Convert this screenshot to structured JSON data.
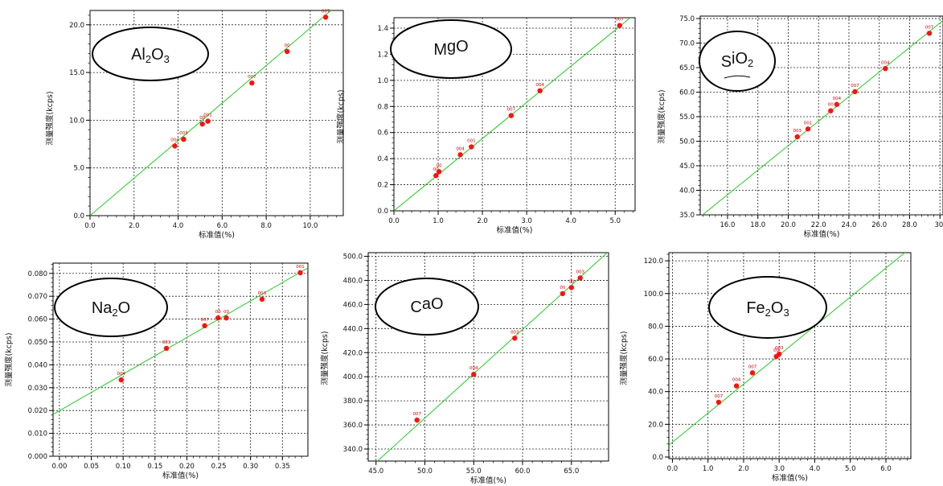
{
  "figure": {
    "charts": [
      {
        "oxide": "Al2O3"
      },
      {
        "oxide": "MgO"
      },
      {
        "oxide": "SiO2"
      },
      {
        "oxide": "Na2O"
      },
      {
        "oxide": "CaO"
      },
      {
        "oxide": "Fe2O3"
      }
    ]
  },
  "chart_data": [
    {
      "type": "scatter",
      "oxide": "Al2O3",
      "xlabel": "标准值(%)",
      "ylabel": "测量强度(kcps)",
      "xlim": [
        0,
        11.5
      ],
      "ylim": [
        0,
        21.5
      ],
      "xticks": [
        0,
        2,
        4,
        6,
        8,
        10
      ],
      "xtick_labels": [
        "0.0",
        "2.0",
        "4.0",
        "6.0",
        "8.0",
        "10.0"
      ],
      "yticks": [
        0,
        5,
        10,
        15,
        20
      ],
      "ytick_labels": [
        "0.0",
        "5.0",
        "10.0",
        "15.0",
        "20.0"
      ],
      "fit_line": [
        [
          0,
          0
        ],
        [
          11.5,
          22.6
        ]
      ],
      "points": [
        {
          "x": 3.85,
          "y": 7.3,
          "label": "004"
        },
        {
          "x": 4.25,
          "y": 8.0,
          "label": "003"
        },
        {
          "x": 5.1,
          "y": 9.6,
          "label": "00"
        },
        {
          "x": 5.35,
          "y": 9.9,
          "label": "001"
        },
        {
          "x": 7.35,
          "y": 13.9,
          "label": "007"
        },
        {
          "x": 8.95,
          "y": 17.2,
          "label": "00"
        },
        {
          "x": 10.7,
          "y": 20.8,
          "label": "007"
        }
      ],
      "grid": true
    },
    {
      "type": "scatter",
      "oxide": "MgO",
      "xlabel": "标准值(%)",
      "ylabel": "测量强度(kcps)",
      "xlim": [
        0,
        5.45
      ],
      "ylim": [
        0,
        1.48
      ],
      "xticks": [
        0,
        1,
        2,
        3,
        4,
        5
      ],
      "xtick_labels": [
        "0.0",
        "1.0",
        "2.0",
        "3.0",
        "4.0",
        "5.0"
      ],
      "yticks": [
        0,
        0.2,
        0.4,
        0.6,
        0.8,
        1.0,
        1.2,
        1.4
      ],
      "ytick_labels": [
        "0.0",
        "0.2",
        "0.4",
        "0.6",
        "0.8",
        "1.0",
        "1.2",
        "1.4"
      ],
      "fit_line": [
        [
          0,
          0.0
        ],
        [
          5.45,
          1.51
        ]
      ],
      "points": [
        {
          "x": 0.95,
          "y": 0.27,
          "label": "00"
        },
        {
          "x": 1.02,
          "y": 0.3,
          "label": "00"
        },
        {
          "x": 1.5,
          "y": 0.43,
          "label": "004"
        },
        {
          "x": 1.75,
          "y": 0.49,
          "label": "001"
        },
        {
          "x": 2.65,
          "y": 0.73,
          "label": "007"
        },
        {
          "x": 3.3,
          "y": 0.92,
          "label": "004"
        },
        {
          "x": 5.1,
          "y": 1.42,
          "label": "007"
        }
      ],
      "grid": true
    },
    {
      "type": "scatter",
      "oxide": "SiO2",
      "xlabel": "标准值(%)",
      "ylabel": "测量强度(kcps)",
      "xlim": [
        14.2,
        30.2
      ],
      "ylim": [
        35,
        75.5
      ],
      "xticks": [
        16,
        18,
        20,
        22,
        24,
        26,
        28,
        30
      ],
      "xtick_labels": [
        "16.0",
        "18.0",
        "20.0",
        "22.0",
        "24.0",
        "26.0",
        "28.0",
        "30."
      ],
      "yticks": [
        35,
        40,
        45,
        50,
        55,
        60,
        65,
        70,
        75
      ],
      "ytick_labels": [
        "35.0",
        "40.0",
        "45.0",
        "50.0",
        "55.0",
        "60.0",
        "65.0",
        "70.0",
        "75.0"
      ],
      "fit_line": [
        [
          14.2,
          34.6
        ],
        [
          30.2,
          74.6
        ]
      ],
      "points": [
        {
          "x": 20.6,
          "y": 50.9,
          "label": "003"
        },
        {
          "x": 21.3,
          "y": 52.5,
          "label": "001"
        },
        {
          "x": 22.8,
          "y": 56.2,
          "label": "00"
        },
        {
          "x": 23.2,
          "y": 57.5,
          "label": "004"
        },
        {
          "x": 24.4,
          "y": 60.1,
          "label": "007"
        },
        {
          "x": 26.4,
          "y": 64.8,
          "label": "004"
        },
        {
          "x": 29.3,
          "y": 72.0,
          "label": "007"
        }
      ],
      "grid": true
    },
    {
      "type": "scatter",
      "oxide": "Na2O",
      "xlabel": "标准值(%)",
      "ylabel": "测量强度(kcps)",
      "xlim": [
        -0.01,
        0.39
      ],
      "ylim": [
        0,
        0.0845
      ],
      "xticks": [
        0,
        0.05,
        0.1,
        0.15,
        0.2,
        0.25,
        0.3,
        0.35
      ],
      "xtick_labels": [
        "0.00",
        "0.05",
        "0.10",
        "0.15",
        "0.20",
        "0.25",
        "0.30",
        "0.35"
      ],
      "yticks": [
        0,
        0.01,
        0.02,
        0.03,
        0.04,
        0.05,
        0.06,
        0.07,
        0.08
      ],
      "ytick_labels": [
        "0.000",
        "0.010",
        "0.020",
        "0.030",
        "0.040",
        "0.050",
        "0.060",
        "0.070",
        "0.080"
      ],
      "fit_line": [
        [
          -0.01,
          0.0183
        ],
        [
          0.39,
          0.0824
        ]
      ],
      "points": [
        {
          "x": 0.097,
          "y": 0.0334,
          "label": "004"
        },
        {
          "x": 0.168,
          "y": 0.0472,
          "label": "003"
        },
        {
          "x": 0.228,
          "y": 0.0571,
          "label": "007"
        },
        {
          "x": 0.249,
          "y": 0.0605,
          "label": "00"
        },
        {
          "x": 0.262,
          "y": 0.0605,
          "label": "00"
        },
        {
          "x": 0.318,
          "y": 0.0687,
          "label": "003"
        },
        {
          "x": 0.378,
          "y": 0.0803,
          "label": "001"
        }
      ],
      "grid": true
    },
    {
      "type": "scatter",
      "oxide": "CaO",
      "xlabel": "标准值(%)",
      "ylabel": "测量强度(kcps)",
      "xlim": [
        44.2,
        68.8
      ],
      "ylim": [
        330,
        503
      ],
      "xticks": [
        45,
        50,
        55,
        60,
        65
      ],
      "xtick_labels": [
        "45.0",
        "50.0",
        "55.0",
        "60.0",
        "65.0"
      ],
      "yticks": [
        340,
        360,
        380,
        400,
        420,
        440,
        460,
        480,
        500
      ],
      "ytick_labels": [
        "340.0",
        "360.0",
        "380.0",
        "400.0",
        "420.0",
        "440.0",
        "460.0",
        "480.0",
        "500.0"
      ],
      "fit_line": [
        [
          44.2,
          323
        ],
        [
          68.8,
          504
        ]
      ],
      "points": [
        {
          "x": 49.2,
          "y": 364,
          "label": "007"
        },
        {
          "x": 55.0,
          "y": 402,
          "label": "004"
        },
        {
          "x": 59.2,
          "y": 432,
          "label": "003"
        },
        {
          "x": 64.1,
          "y": 469,
          "label": "00"
        },
        {
          "x": 65.0,
          "y": 474,
          "label": "00"
        },
        {
          "x": 65.9,
          "y": 482,
          "label": "003"
        }
      ],
      "grid": true
    },
    {
      "type": "scatter",
      "oxide": "Fe2O3",
      "xlabel": "标准值(%)",
      "ylabel": "测量强度(kcps)",
      "xlim": [
        -0.1,
        6.7
      ],
      "ylim": [
        -1,
        125
      ],
      "xticks": [
        0,
        1,
        2,
        3,
        4,
        5,
        6
      ],
      "xtick_labels": [
        "0.0",
        "1.0",
        "2.0",
        "3.0",
        "4.0",
        "5.0",
        "6.0"
      ],
      "yticks": [
        0,
        20,
        40,
        60,
        80,
        100,
        120
      ],
      "ytick_labels": [
        "0.0",
        "20.0",
        "40.0",
        "60.0",
        "80.0",
        "100.0",
        "120.0"
      ],
      "fit_line": [
        [
          -0.1,
          7.3
        ],
        [
          6.7,
          128
        ]
      ],
      "points": [
        {
          "x": 1.3,
          "y": 33.5,
          "label": "007"
        },
        {
          "x": 1.8,
          "y": 43.5,
          "label": "004"
        },
        {
          "x": 2.25,
          "y": 51.5,
          "label": "007"
        },
        {
          "x": 2.92,
          "y": 61.5,
          "label": "00"
        },
        {
          "x": 3.0,
          "y": 63.0,
          "label": "003"
        }
      ],
      "grid": true
    }
  ]
}
